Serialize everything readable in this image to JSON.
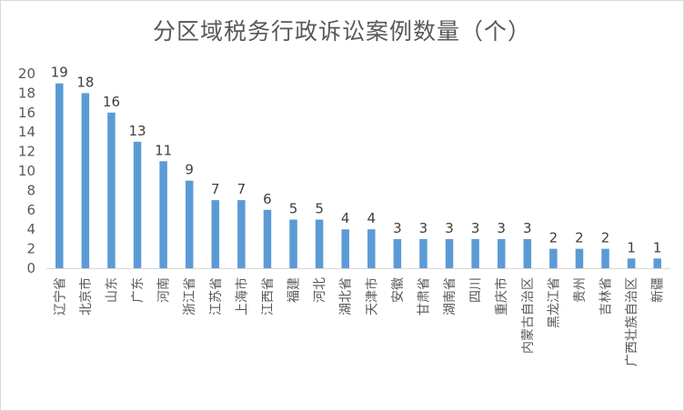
{
  "chart_data": {
    "type": "bar",
    "title": "分区域税务行政诉讼案例数量（个）",
    "categories": [
      "辽宁省",
      "北京市",
      "山东",
      "广东",
      "河南",
      "浙江省",
      "江苏省",
      "上海市",
      "江西省",
      "福建",
      "河北",
      "湖北省",
      "天津市",
      "安徽",
      "甘肃省",
      "湖南省",
      "四川",
      "重庆市",
      "内蒙古自治区",
      "黑龙江省",
      "贵州",
      "吉林省",
      "广西壮族自治区",
      "新疆"
    ],
    "values": [
      19,
      18,
      16,
      13,
      11,
      9,
      7,
      7,
      6,
      5,
      5,
      4,
      4,
      3,
      3,
      3,
      3,
      3,
      3,
      2,
      2,
      2,
      1,
      1
    ],
    "ylim": [
      0,
      20
    ],
    "yticks": [
      0,
      2,
      4,
      6,
      8,
      10,
      12,
      14,
      16,
      18,
      20
    ],
    "grid": false,
    "legend": "none",
    "bar_color": "#5b9bd5"
  }
}
